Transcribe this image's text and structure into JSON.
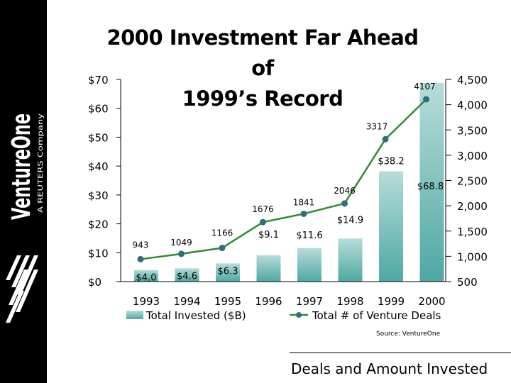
{
  "logo": {
    "brand": "VentureOne",
    "tagline": "A REUTERS Company"
  },
  "footer": {
    "text": "Deals and Amount Invested"
  },
  "chart_data": {
    "type": "bar",
    "title": "2000 Investment Far Ahead of 1999’s Record",
    "title_lines": [
      "2000 Investment Far Ahead of",
      "1999’s Record"
    ],
    "source": "Source: VentureOne",
    "categories": [
      "1993",
      "1994",
      "1995",
      "1996",
      "1997",
      "1998",
      "1999",
      "2000"
    ],
    "series": [
      {
        "name": "Total Invested ($B)",
        "chart": "bar",
        "axis": "left",
        "values": [
          4.0,
          4.6,
          6.3,
          9.1,
          11.6,
          14.9,
          38.2,
          68.8
        ],
        "labels": [
          "$4.0",
          "$4.6",
          "$6.3",
          "$9.1",
          "$11.6",
          "$14.9",
          "$38.2",
          "$68.8"
        ]
      },
      {
        "name": "Total # of Venture Deals",
        "chart": "line",
        "axis": "right",
        "values": [
          943,
          1049,
          1166,
          1676,
          1841,
          2046,
          3317,
          4107
        ],
        "labels": [
          "943",
          "1049",
          "1166",
          "1676",
          "1841",
          "2046",
          "3317",
          "4107"
        ]
      }
    ],
    "y_left": {
      "range": [
        0,
        70
      ],
      "ticks": [
        "$0",
        "$10",
        "$20",
        "$30",
        "$40",
        "$50",
        "$60",
        "$70"
      ]
    },
    "y_right": {
      "range": [
        500,
        4500
      ],
      "ticks": [
        "500",
        "1,000",
        "1,500",
        "2,000",
        "2,500",
        "3,000",
        "3,500",
        "4,000",
        "4,500"
      ]
    },
    "grid": false,
    "legend": "bottom",
    "colors": {
      "bar_top": "#b7dcd9",
      "bar_bottom": "#4ea8a3",
      "line": "#2e8b2e",
      "marker": "#2f6f7a"
    }
  }
}
